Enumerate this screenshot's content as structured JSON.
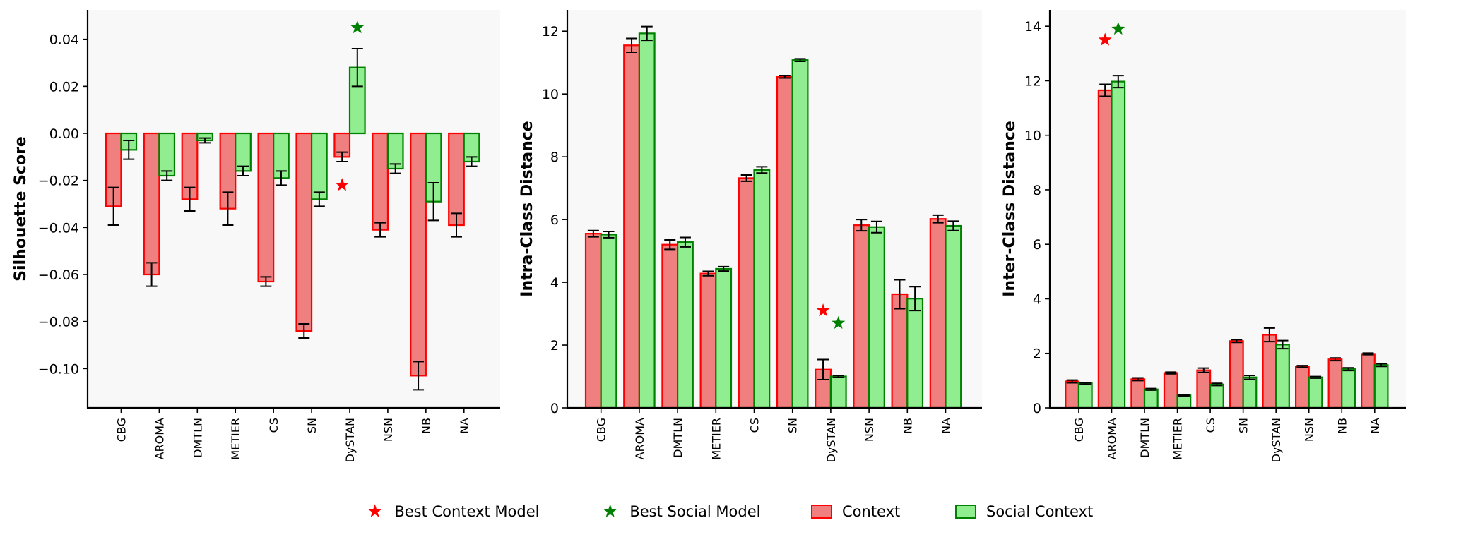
{
  "colors": {
    "context_fill": "#f08080",
    "context_edge": "#ff0000",
    "social_fill": "#90ee90",
    "social_edge": "#008000",
    "plot_bg": "#f8f8f8",
    "best_context_star": "#ff0000",
    "best_social_star": "#008000"
  },
  "legend": {
    "best_context": "Best Context Model",
    "best_social": "Best Social Model",
    "context": "Context",
    "social": "Social Context"
  },
  "chart_data": [
    {
      "type": "bar",
      "ylabel": "Silhouette Score",
      "categories": [
        "CBG",
        "AROMA",
        "DMTLN",
        "METIER",
        "CS",
        "SN",
        "DySTAN",
        "NSN",
        "NB",
        "NA"
      ],
      "ylim": [
        -0.1167,
        0.0525
      ],
      "yticks": [
        -0.1,
        -0.08,
        -0.06,
        -0.04,
        -0.02,
        0.0,
        0.02,
        0.04
      ],
      "ytick_labels": [
        "−0.10",
        "−0.08",
        "−0.06",
        "−0.04",
        "−0.02",
        "0.00",
        "0.02",
        "0.04"
      ],
      "grid": false,
      "series": [
        {
          "name": "Context",
          "values": [
            -0.031,
            -0.06,
            -0.028,
            -0.032,
            -0.063,
            -0.084,
            -0.01,
            -0.041,
            -0.103,
            -0.039
          ],
          "errors": [
            0.008,
            0.005,
            0.005,
            0.007,
            0.002,
            0.003,
            0.002,
            0.003,
            0.006,
            0.005
          ]
        },
        {
          "name": "Social Context",
          "values": [
            -0.007,
            -0.018,
            -0.003,
            -0.016,
            -0.019,
            -0.028,
            0.028,
            -0.015,
            -0.029,
            -0.012
          ],
          "errors": [
            0.004,
            0.002,
            0.001,
            0.002,
            0.003,
            0.003,
            0.008,
            0.002,
            0.008,
            0.002
          ]
        }
      ],
      "best_context": {
        "category": "DySTAN",
        "value": -0.022
      },
      "best_social": {
        "category": "DySTAN",
        "value": 0.045
      }
    },
    {
      "type": "bar",
      "ylabel": "Intra-Class Distance",
      "categories": [
        "CBG",
        "AROMA",
        "DMTLN",
        "METIER",
        "CS",
        "SN",
        "DySTAN",
        "NSN",
        "NB",
        "NA"
      ],
      "ylim": [
        0,
        12.68
      ],
      "yticks": [
        0,
        2,
        4,
        6,
        8,
        10,
        12
      ],
      "ytick_labels": [
        "0",
        "2",
        "4",
        "6",
        "8",
        "10",
        "12"
      ],
      "grid": false,
      "series": [
        {
          "name": "Context",
          "values": [
            5.55,
            11.55,
            5.2,
            4.28,
            7.32,
            10.55,
            1.22,
            5.82,
            3.62,
            6.02
          ],
          "errors": [
            0.1,
            0.22,
            0.15,
            0.07,
            0.1,
            0.04,
            0.32,
            0.18,
            0.46,
            0.12
          ]
        },
        {
          "name": "Social Context",
          "values": [
            5.52,
            11.93,
            5.28,
            4.43,
            7.58,
            11.08,
            1.0,
            5.76,
            3.48,
            5.8
          ],
          "errors": [
            0.1,
            0.22,
            0.15,
            0.07,
            0.1,
            0.04,
            0.03,
            0.18,
            0.38,
            0.15
          ]
        }
      ],
      "best_context": {
        "category": "DySTAN",
        "value": 3.1
      },
      "best_social": {
        "category": "DySTAN",
        "value": 2.7
      }
    },
    {
      "type": "bar",
      "ylabel": "Inter-Class Distance",
      "categories": [
        "CBG",
        "AROMA",
        "DMTLN",
        "METIER",
        "CS",
        "SN",
        "DySTAN",
        "NSN",
        "NB",
        "NA"
      ],
      "ylim": [
        0,
        14.6
      ],
      "yticks": [
        0,
        2,
        4,
        6,
        8,
        10,
        12,
        14
      ],
      "ytick_labels": [
        "0",
        "2",
        "4",
        "6",
        "8",
        "10",
        "12",
        "14"
      ],
      "grid": false,
      "series": [
        {
          "name": "Context",
          "values": [
            0.97,
            11.65,
            1.05,
            1.28,
            1.38,
            2.45,
            2.68,
            1.52,
            1.78,
            1.98
          ],
          "errors": [
            0.05,
            0.22,
            0.05,
            0.03,
            0.08,
            0.05,
            0.25,
            0.03,
            0.05,
            0.03
          ]
        },
        {
          "name": "Social Context",
          "values": [
            0.9,
            11.97,
            0.68,
            0.46,
            0.86,
            1.12,
            2.32,
            1.12,
            1.42,
            1.57
          ],
          "errors": [
            0.03,
            0.22,
            0.03,
            0.02,
            0.04,
            0.07,
            0.15,
            0.03,
            0.05,
            0.05
          ]
        }
      ],
      "best_context": {
        "category": "AROMA",
        "value": 13.5
      },
      "best_social": {
        "category": "AROMA",
        "value": 13.9
      }
    }
  ]
}
